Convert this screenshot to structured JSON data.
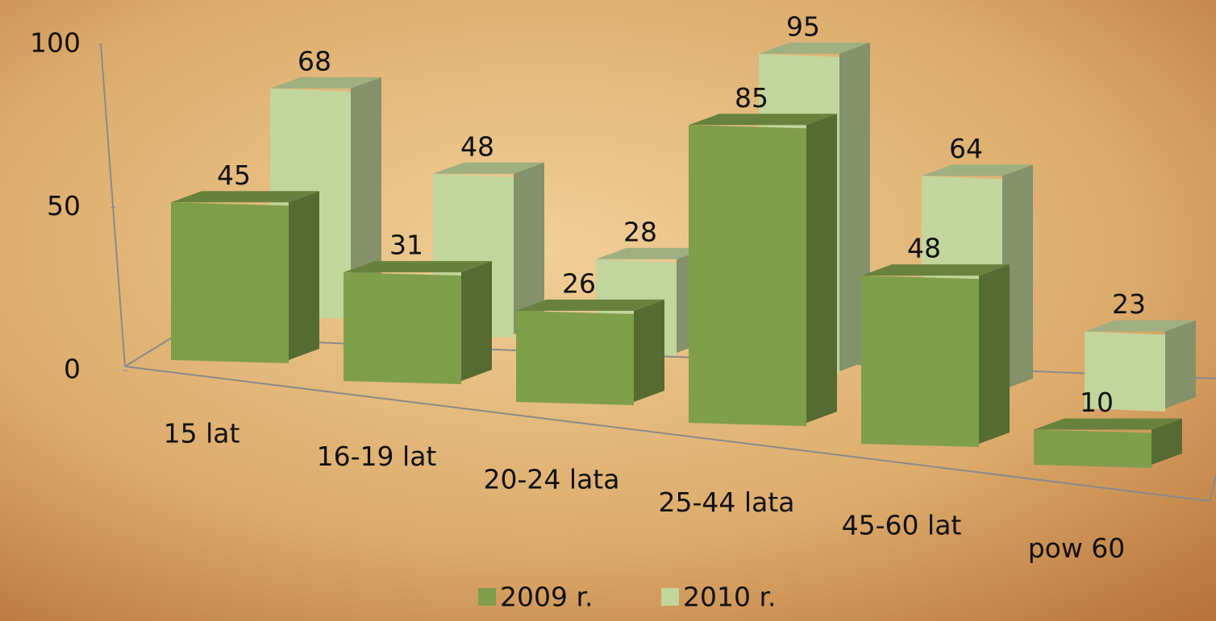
{
  "chart_data": {
    "type": "bar3d",
    "categories": [
      "15 lat",
      "16-19 lat",
      "20-24 lata",
      "25-44 lata",
      "45-60 lat",
      "pow 60"
    ],
    "series": [
      {
        "name": "2009 r.",
        "color": "#7f9e4a",
        "values": [
          45,
          31,
          26,
          85,
          48,
          10
        ]
      },
      {
        "name": "2010 r.",
        "color": "#c2d59c",
        "values": [
          68,
          48,
          28,
          95,
          64,
          23
        ]
      }
    ],
    "ylim": [
      0,
      100
    ],
    "yticks": [
      0,
      50,
      100
    ],
    "legend": "bottom"
  }
}
